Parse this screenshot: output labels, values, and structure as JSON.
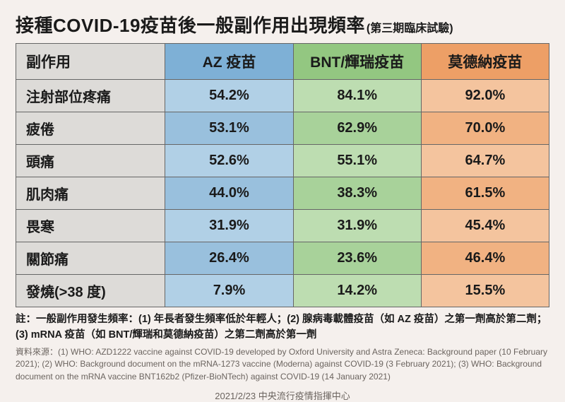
{
  "title": "接種COVID-19疫苗後一般副作用出現頻率",
  "subtitle": "(第三期臨床試驗)",
  "columns": [
    "副作用",
    "AZ 疫苗",
    "BNT/輝瑞疫苗",
    "莫德納疫苗"
  ],
  "header_colors": [
    "#dddbd8",
    "#7eb0d6",
    "#93c781",
    "#ed9f66"
  ],
  "col_colors_odd": [
    "#dddbd8",
    "#b1d0e6",
    "#bdddb1",
    "#f4c49e"
  ],
  "col_colors_even": [
    "#dddbd8",
    "#99c0dd",
    "#a8d29a",
    "#f1b282"
  ],
  "rows": [
    {
      "label": "注射部位疼痛",
      "v": [
        "54.2%",
        "84.1%",
        "92.0%"
      ]
    },
    {
      "label": "疲倦",
      "v": [
        "53.1%",
        "62.9%",
        "70.0%"
      ]
    },
    {
      "label": "頭痛",
      "v": [
        "52.6%",
        "55.1%",
        "64.7%"
      ]
    },
    {
      "label": "肌肉痛",
      "v": [
        "44.0%",
        "38.3%",
        "61.5%"
      ]
    },
    {
      "label": "畏寒",
      "v": [
        "31.9%",
        "31.9%",
        "45.4%"
      ]
    },
    {
      "label": "關節痛",
      "v": [
        "26.4%",
        "23.6%",
        "46.4%"
      ]
    },
    {
      "label": "發燒(>38 度)",
      "v": [
        "7.9%",
        "14.2%",
        "15.5%"
      ]
    }
  ],
  "note": "註：一般副作用發生頻率：(1)  年長者發生頻率低於年輕人；(2)  腺病毒載體疫苗（如 AZ 疫苗）之第一劑高於第二劑；(3)  mRNA 疫苗（如 BNT/輝瑞和莫德納疫苗）之第二劑高於第一劑",
  "sources": "資料來源：(1) WHO: AZD1222 vaccine against COVID-19 developed by Oxford University and Astra Zeneca: Background paper (10 February 2021); (2) WHO: Background document on the mRNA-1273 vaccine (Moderna) against COVID-19 (3 February 2021); (3) WHO: Background document on the mRNA vaccine BNT162b2 (Pfizer-BioNTech) against COVID-19 (14 January 2021)",
  "footer": "2021/2/23 中央流行疫情指揮中心"
}
